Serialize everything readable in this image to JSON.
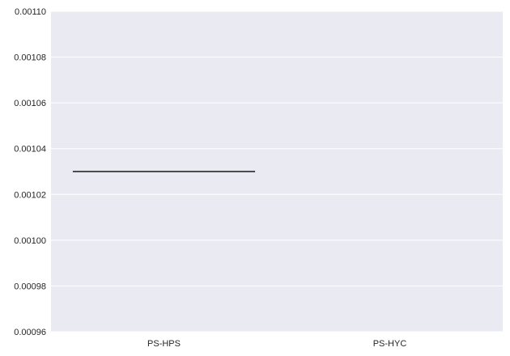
{
  "chart_data": {
    "type": "box",
    "categories": [
      "PS-HPS",
      "PS-HYC"
    ],
    "series": [
      {
        "category": "PS-HPS",
        "min": 0.00103,
        "q1": 0.00103,
        "median": 0.00103,
        "q3": 0.00103,
        "max": 0.00103
      }
    ],
    "ylim": [
      0.00096,
      0.0011
    ],
    "yticks": [
      "0.00096",
      "0.00098",
      "0.00100",
      "0.00102",
      "0.00104",
      "0.00106",
      "0.00108",
      "0.00110"
    ],
    "title": "",
    "xlabel": "",
    "ylabel": "",
    "grid": true,
    "colors": {
      "background": "#EAEAF2",
      "grid": "#FFFFFF",
      "box_line": "#4D4D4D"
    }
  }
}
